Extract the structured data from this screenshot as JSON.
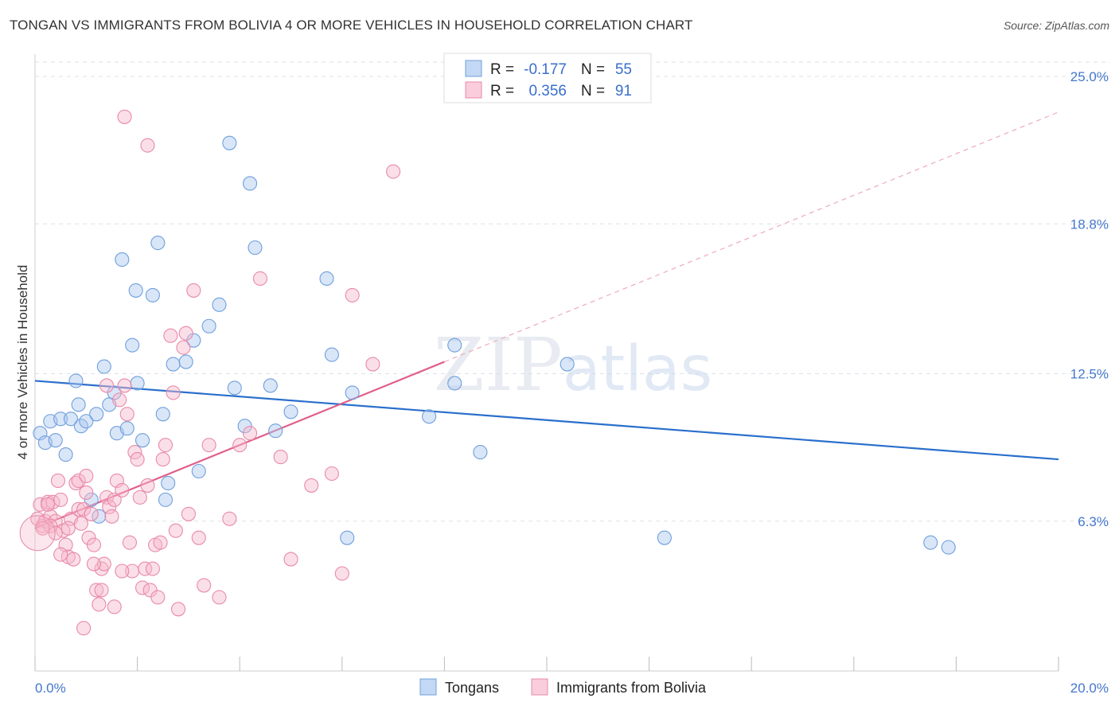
{
  "header": {
    "title": "TONGAN VS IMMIGRANTS FROM BOLIVIA 4 OR MORE VEHICLES IN HOUSEHOLD CORRELATION CHART",
    "source": "Source: ZipAtlas.com"
  },
  "watermark": "ZIPatlas",
  "legend": {
    "rows": [
      {
        "r_label": "R =",
        "r_value": "-0.177",
        "n_label": "N =",
        "n_value": "55",
        "color": "#aac8f0"
      },
      {
        "r_label": "R =",
        "r_value": "0.356",
        "n_label": "N =",
        "n_value": "91",
        "color": "#f6b8cc"
      }
    ]
  },
  "bottom_legend": {
    "items": [
      {
        "label": "Tongans",
        "color": "#aac8f0"
      },
      {
        "label": "Immigrants from Bolivia",
        "color": "#f6b8cc"
      }
    ]
  },
  "chart_data": {
    "type": "scatter",
    "title": "TONGAN VS IMMIGRANTS FROM BOLIVIA 4 OR MORE VEHICLES IN HOUSEHOLD CORRELATION CHART",
    "xlabel": "",
    "ylabel": "4 or more Vehicles in Household",
    "xlim": [
      0,
      20
    ],
    "ylim": [
      0,
      25
    ],
    "x_tick_labels": [
      "0.0%",
      "20.0%"
    ],
    "y_ticks": [
      6.3,
      12.5,
      18.8,
      25.0
    ],
    "y_tick_labels": [
      "6.3%",
      "12.5%",
      "18.8%",
      "25.0%"
    ],
    "grid": true,
    "legend_position": "top-center",
    "series": [
      {
        "name": "Tongans",
        "color": "#aac8f0",
        "stroke": "#6f9fdc",
        "trend": {
          "x0": 0.0,
          "y0": 12.2,
          "x1": 20.0,
          "y1": 8.9,
          "color": "#2a6fcc",
          "dashed_from": null
        },
        "points": [
          [
            0.1,
            10.0
          ],
          [
            0.2,
            9.6
          ],
          [
            0.3,
            10.5
          ],
          [
            0.4,
            9.7
          ],
          [
            0.5,
            10.6
          ],
          [
            0.6,
            9.1
          ],
          [
            0.7,
            10.6
          ],
          [
            0.8,
            12.2
          ],
          [
            0.85,
            11.2
          ],
          [
            0.9,
            10.3
          ],
          [
            1.0,
            10.5
          ],
          [
            1.1,
            7.2
          ],
          [
            1.2,
            10.8
          ],
          [
            1.25,
            6.5
          ],
          [
            1.35,
            12.8
          ],
          [
            1.45,
            11.2
          ],
          [
            1.55,
            11.7
          ],
          [
            1.6,
            10.0
          ],
          [
            1.7,
            17.3
          ],
          [
            1.8,
            10.2
          ],
          [
            1.9,
            13.7
          ],
          [
            1.97,
            16.0
          ],
          [
            2.0,
            12.1
          ],
          [
            2.1,
            9.7
          ],
          [
            2.3,
            15.8
          ],
          [
            2.4,
            18.0
          ],
          [
            2.5,
            10.8
          ],
          [
            2.55,
            7.2
          ],
          [
            2.6,
            7.9
          ],
          [
            2.7,
            12.9
          ],
          [
            2.95,
            13.0
          ],
          [
            3.1,
            13.9
          ],
          [
            3.2,
            8.4
          ],
          [
            3.4,
            14.5
          ],
          [
            3.6,
            15.4
          ],
          [
            3.8,
            22.2
          ],
          [
            3.9,
            11.9
          ],
          [
            4.1,
            10.3
          ],
          [
            4.2,
            20.5
          ],
          [
            4.3,
            17.8
          ],
          [
            4.6,
            12.0
          ],
          [
            4.7,
            10.1
          ],
          [
            5.0,
            10.9
          ],
          [
            5.7,
            16.5
          ],
          [
            5.8,
            13.3
          ],
          [
            6.2,
            11.7
          ],
          [
            6.1,
            5.6
          ],
          [
            7.7,
            10.7
          ],
          [
            8.2,
            12.1
          ],
          [
            8.2,
            13.7
          ],
          [
            8.7,
            9.2
          ],
          [
            10.4,
            12.9
          ],
          [
            12.3,
            5.6
          ],
          [
            17.5,
            5.4
          ],
          [
            17.85,
            5.2
          ]
        ]
      },
      {
        "name": "Immigrants from Bolivia",
        "color": "#f6b8cc",
        "stroke": "#e88aa8",
        "trend": {
          "x0": 0.0,
          "y0": 6.0,
          "x1": 20.0,
          "y1": 23.5,
          "color": "#e0608a",
          "solid_until_x": 8.0
        },
        "points": [
          [
            0.05,
            6.4
          ],
          [
            0.1,
            7.0
          ],
          [
            0.15,
            6.1
          ],
          [
            0.2,
            6.3
          ],
          [
            0.25,
            7.1
          ],
          [
            0.3,
            6.5
          ],
          [
            0.35,
            7.1
          ],
          [
            0.4,
            6.3
          ],
          [
            0.45,
            8.0
          ],
          [
            0.5,
            7.2
          ],
          [
            0.55,
            5.9
          ],
          [
            0.6,
            5.3
          ],
          [
            0.65,
            4.8
          ],
          [
            0.7,
            6.4
          ],
          [
            0.75,
            4.7
          ],
          [
            0.8,
            7.9
          ],
          [
            0.85,
            6.8
          ],
          [
            0.9,
            6.2
          ],
          [
            0.95,
            6.8
          ],
          [
            1.0,
            7.5
          ],
          [
            1.05,
            5.6
          ],
          [
            1.1,
            6.6
          ],
          [
            1.15,
            5.3
          ],
          [
            1.2,
            3.4
          ],
          [
            1.25,
            2.8
          ],
          [
            1.3,
            4.3
          ],
          [
            1.35,
            4.5
          ],
          [
            1.4,
            7.3
          ],
          [
            1.45,
            6.9
          ],
          [
            1.5,
            6.5
          ],
          [
            1.55,
            7.2
          ],
          [
            1.6,
            8.0
          ],
          [
            1.65,
            11.4
          ],
          [
            1.7,
            7.6
          ],
          [
            1.75,
            12.0
          ],
          [
            1.8,
            10.8
          ],
          [
            1.85,
            5.4
          ],
          [
            1.9,
            4.2
          ],
          [
            1.95,
            9.2
          ],
          [
            2.0,
            8.9
          ],
          [
            2.05,
            7.3
          ],
          [
            2.1,
            3.5
          ],
          [
            2.15,
            4.3
          ],
          [
            2.2,
            7.8
          ],
          [
            2.25,
            3.4
          ],
          [
            2.3,
            4.3
          ],
          [
            2.35,
            5.3
          ],
          [
            2.45,
            5.4
          ],
          [
            2.5,
            8.9
          ],
          [
            2.55,
            9.5
          ],
          [
            2.65,
            14.1
          ],
          [
            2.7,
            11.7
          ],
          [
            2.75,
            5.9
          ],
          [
            2.8,
            2.6
          ],
          [
            2.9,
            13.6
          ],
          [
            2.95,
            14.2
          ],
          [
            3.0,
            6.6
          ],
          [
            3.1,
            16.0
          ],
          [
            3.2,
            5.6
          ],
          [
            3.3,
            3.6
          ],
          [
            3.4,
            9.5
          ],
          [
            3.6,
            3.1
          ],
          [
            3.8,
            6.4
          ],
          [
            4.0,
            9.5
          ],
          [
            4.2,
            10.0
          ],
          [
            4.4,
            16.5
          ],
          [
            4.8,
            9.0
          ],
          [
            5.0,
            4.7
          ],
          [
            5.4,
            7.8
          ],
          [
            5.8,
            8.3
          ],
          [
            6.0,
            4.1
          ],
          [
            6.2,
            15.8
          ],
          [
            6.6,
            12.9
          ],
          [
            7.0,
            21.0
          ],
          [
            1.4,
            12.0
          ],
          [
            1.75,
            23.3
          ],
          [
            2.2,
            22.1
          ],
          [
            0.3,
            6.1
          ],
          [
            0.4,
            5.8
          ],
          [
            0.15,
            6.0
          ],
          [
            0.25,
            7.0
          ],
          [
            0.5,
            4.9
          ],
          [
            0.65,
            6.0
          ],
          [
            0.85,
            8.0
          ],
          [
            1.0,
            8.2
          ],
          [
            1.15,
            4.5
          ],
          [
            1.3,
            3.4
          ],
          [
            1.55,
            2.7
          ],
          [
            1.7,
            4.2
          ],
          [
            0.95,
            1.8
          ],
          [
            2.4,
            3.1
          ]
        ]
      }
    ]
  }
}
